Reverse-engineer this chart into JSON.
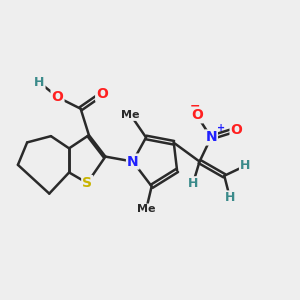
{
  "background_color": "#eeeeee",
  "bond_color": "#2a2a2a",
  "bond_lw": 1.8,
  "dbo": 0.055,
  "atom_colors": {
    "S": "#c8b400",
    "N": "#2020ff",
    "O": "#ff2020",
    "H": "#3a8a8a",
    "C": "#2a2a2a"
  },
  "fs": 9,
  "figsize": [
    3.0,
    3.0
  ],
  "dpi": 100,
  "xlim": [
    0.5,
    9.5
  ],
  "ylim": [
    2.5,
    8.5
  ]
}
